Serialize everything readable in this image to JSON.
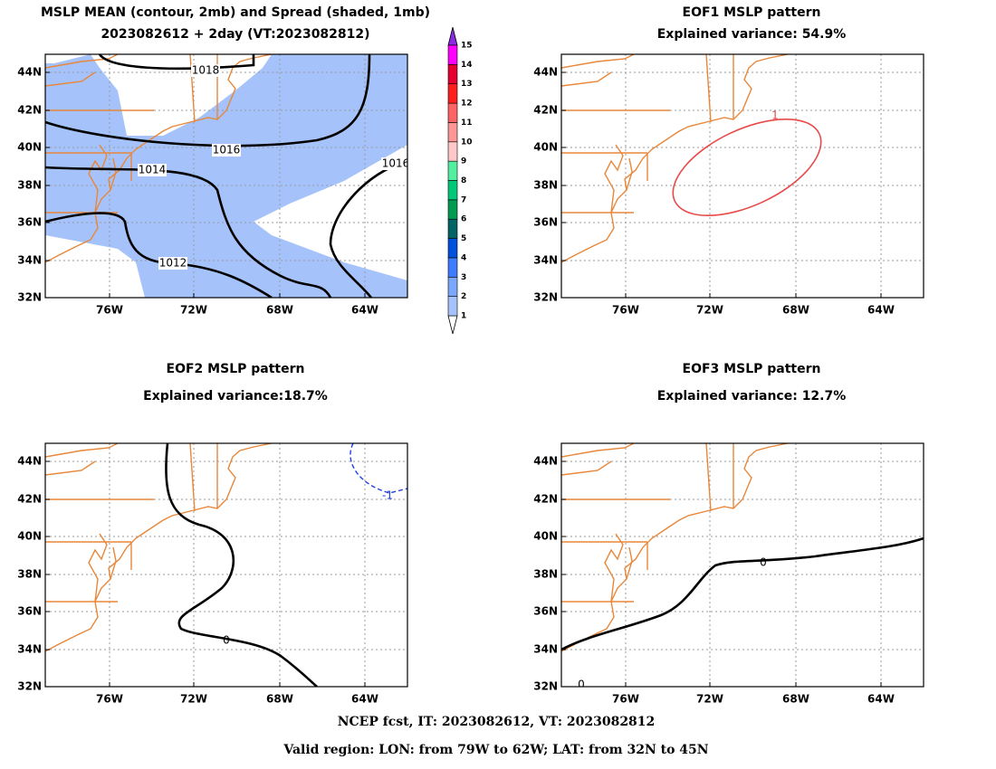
{
  "panels": [
    {
      "title": "MSLP MEAN (contour, 2mb) and Spread (shaded, 1mb)",
      "subtitle": "2023082612 + 2day (VT:2023082812)",
      "contour_labels": [
        "1018",
        "1016",
        "1014",
        "1016",
        "1012"
      ]
    },
    {
      "title": "EOF1 MSLP pattern",
      "subtitle": "Explained variance: 54.9%",
      "contour_labels": [
        "1"
      ]
    },
    {
      "title": "EOF2 MSLP pattern",
      "subtitle": "Explained variance:18.7%",
      "contour_labels": [
        "0",
        "-1"
      ]
    },
    {
      "title": "EOF3 MSLP pattern",
      "subtitle": "Explained variance: 12.7%",
      "contour_labels": [
        "0",
        "0"
      ]
    }
  ],
  "lat_labels": [
    "44N",
    "42N",
    "40N",
    "38N",
    "36N",
    "34N",
    "32N"
  ],
  "lon_labels": [
    "76W",
    "72W",
    "68W",
    "64W"
  ],
  "colorbar_labels": [
    "1",
    "2",
    "3",
    "4",
    "5",
    "6",
    "7",
    "8",
    "9",
    "10",
    "11",
    "12",
    "13",
    "14",
    "15"
  ],
  "footer": [
    "NCEP fcst, IT: 2023082612, VT: 2023082812",
    "Valid region: LON: from 79W to 62W; LAT: from 32N to 45N"
  ]
}
